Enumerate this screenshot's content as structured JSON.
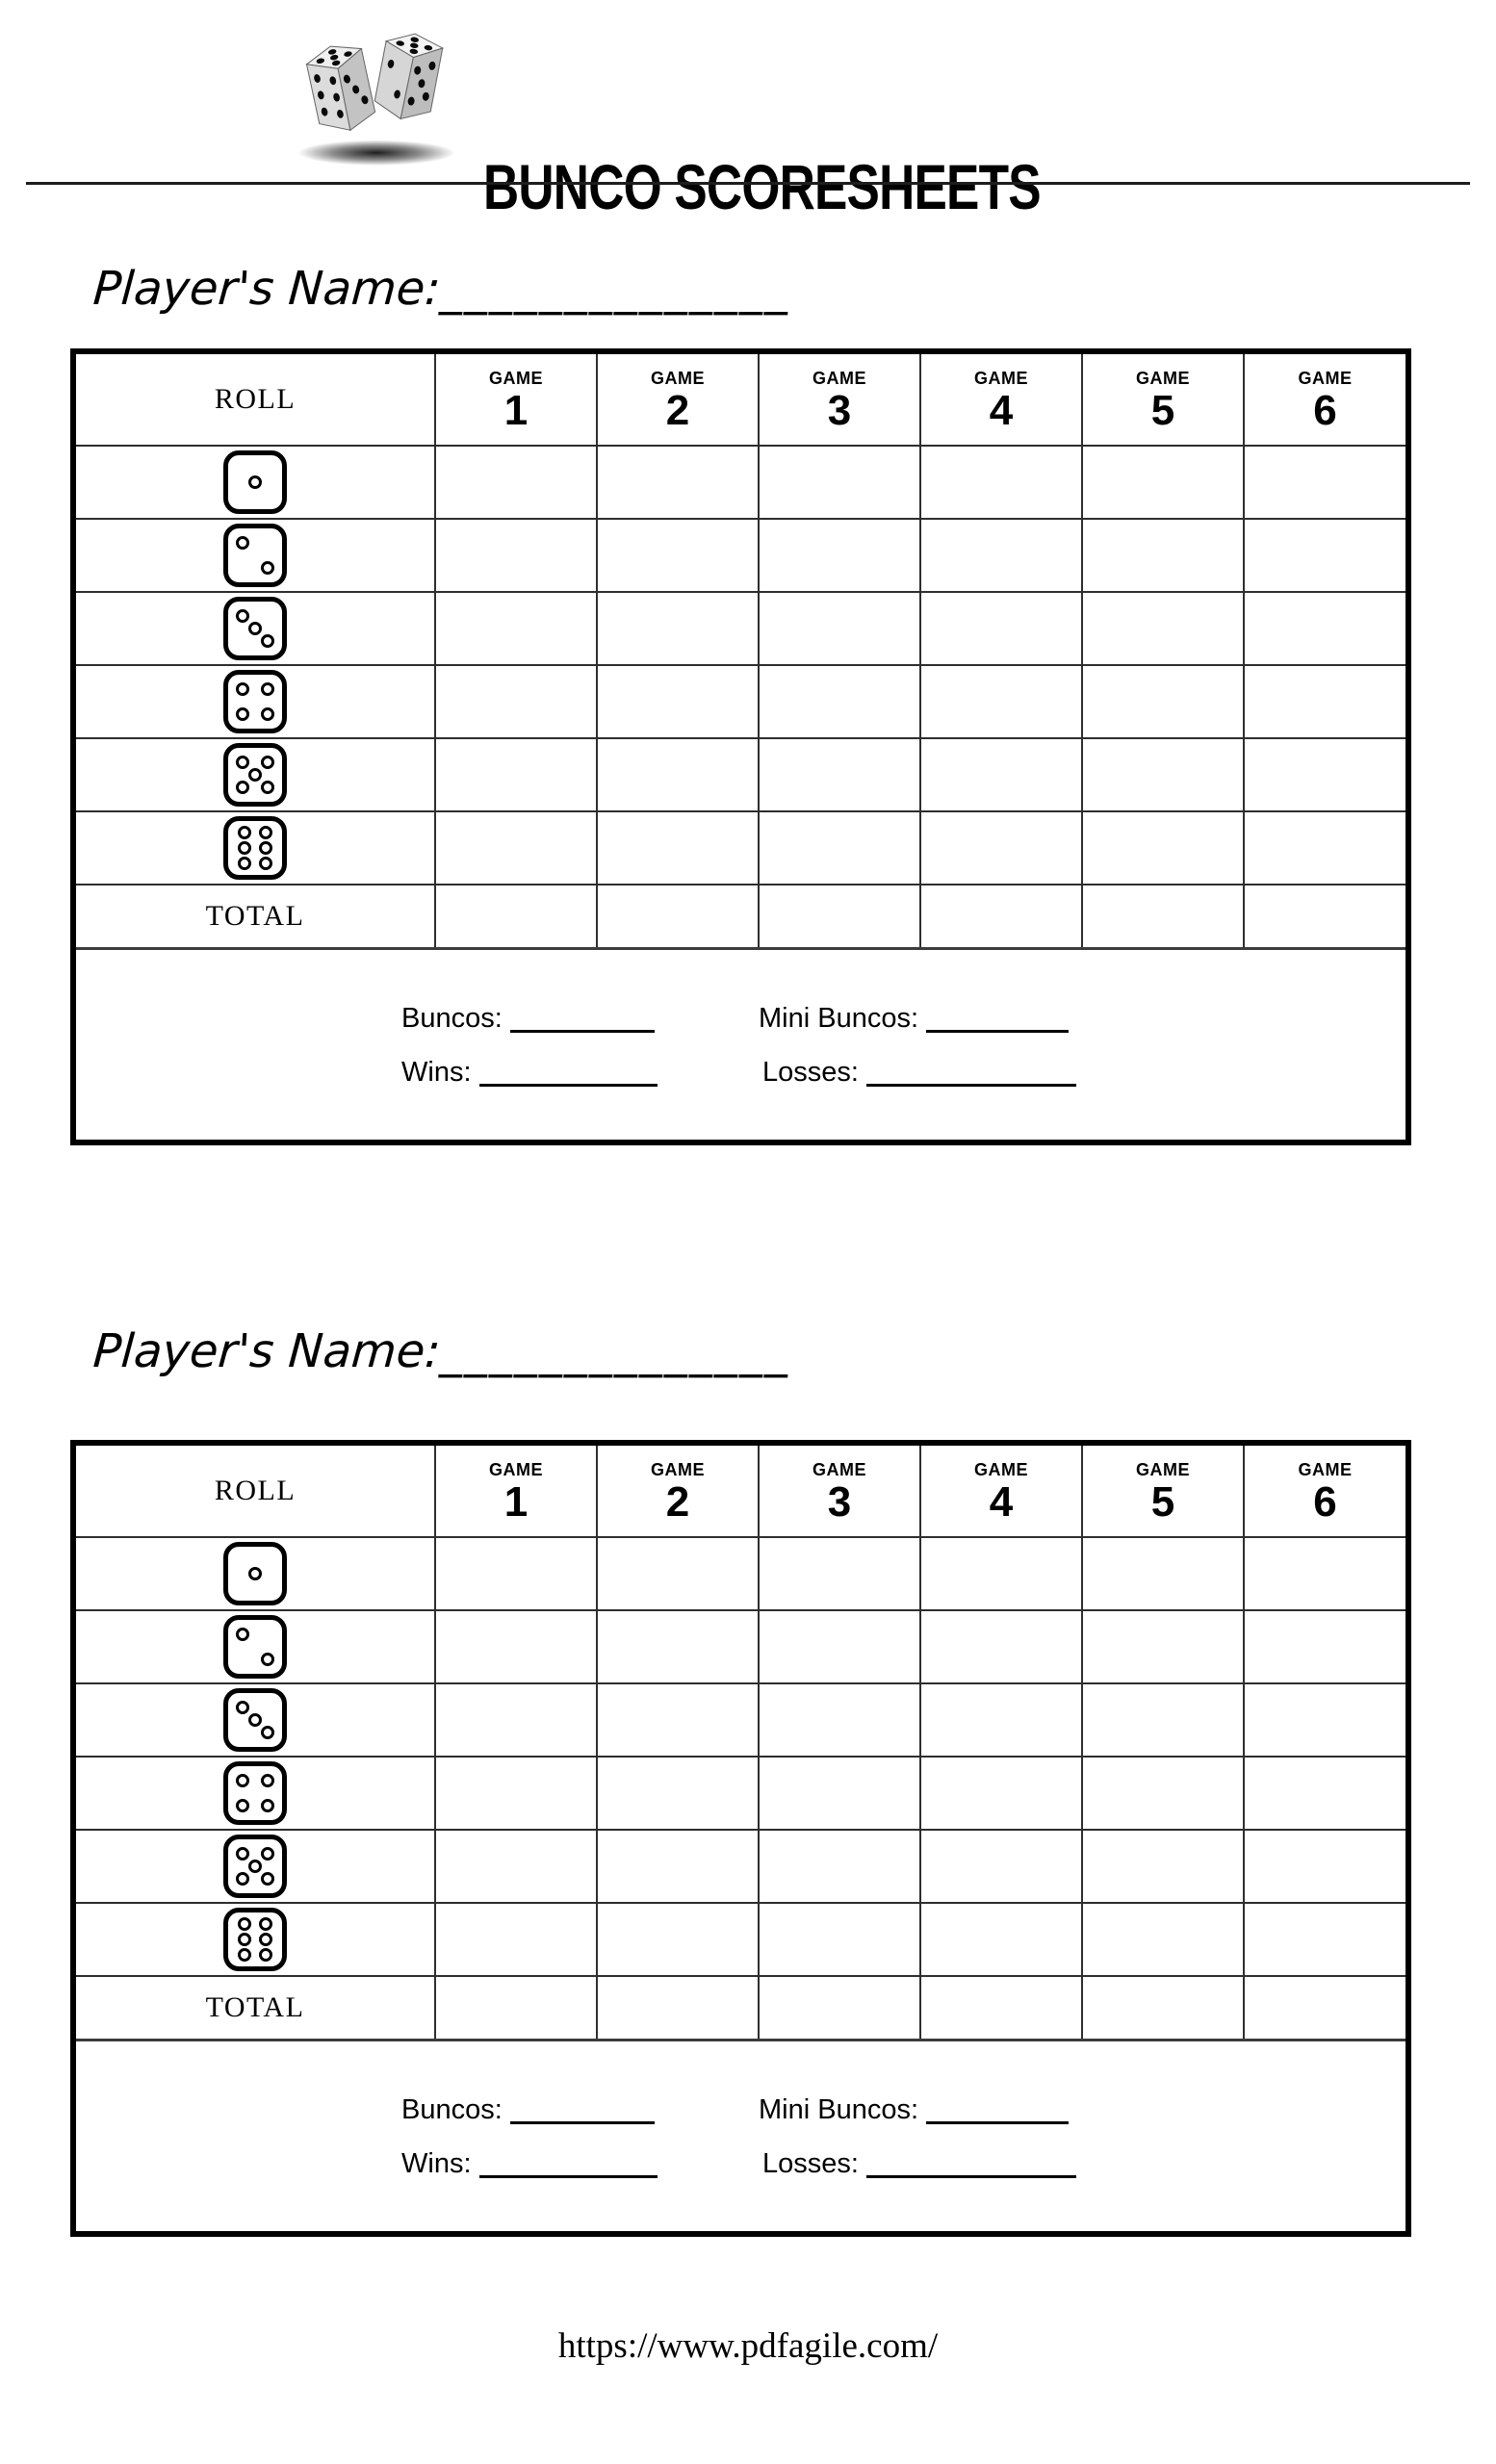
{
  "header": {
    "title": "BUNCO SCORESHEETS",
    "logo": "dice-pair-icon"
  },
  "games": [
    {
      "label": "GAME",
      "number": "1"
    },
    {
      "label": "GAME",
      "number": "2"
    },
    {
      "label": "GAME",
      "number": "3"
    },
    {
      "label": "GAME",
      "number": "4"
    },
    {
      "label": "GAME",
      "number": "5"
    },
    {
      "label": "GAME",
      "number": "6"
    }
  ],
  "sheets": [
    {
      "player_name_label": "Player's Name:",
      "player_name_blank": "______________",
      "roll_header": "ROLL",
      "total_label": "TOTAL",
      "dice_faces": [
        1,
        2,
        3,
        4,
        5,
        6
      ],
      "tally": {
        "buncos_label": "Buncos:",
        "mini_buncos_label": "Mini Buncos:",
        "wins_label": "Wins:",
        "losses_label": "Losses:"
      }
    },
    {
      "player_name_label": "Player's Name:",
      "player_name_blank": "______________",
      "roll_header": "ROLL",
      "total_label": "TOTAL",
      "dice_faces": [
        1,
        2,
        3,
        4,
        5,
        6
      ],
      "tally": {
        "buncos_label": "Buncos:",
        "mini_buncos_label": "Mini Buncos:",
        "wins_label": "Wins:",
        "losses_label": "Losses:"
      }
    }
  ],
  "footer": {
    "url": "https://www.pdfagile.com/"
  }
}
